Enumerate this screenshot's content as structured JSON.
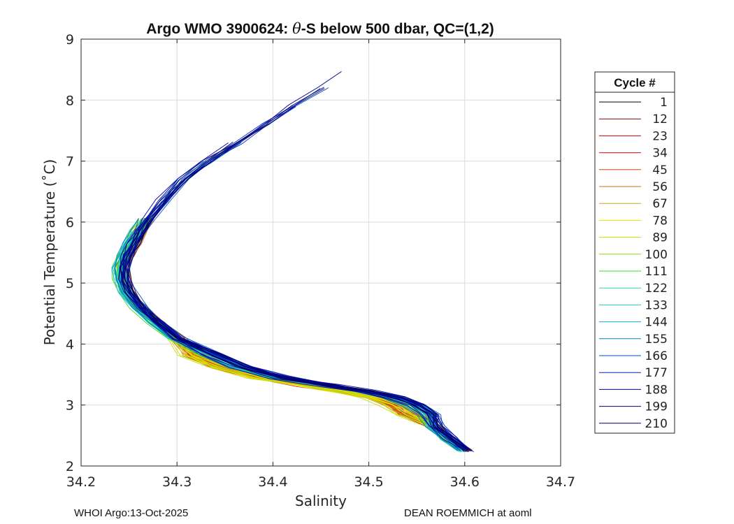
{
  "chart_data": {
    "type": "line",
    "title_prefix": "Argo WMO 3900624: ",
    "title_theta": "θ",
    "title_suffix": "-S below 500 dbar,  QC=(1,2)",
    "xlabel": "Salinity",
    "ylabel": "Potential Temperature (˚C)",
    "xlim": [
      34.2,
      34.7
    ],
    "ylim": [
      2,
      9
    ],
    "xticks": [
      "34.2",
      "34.3",
      "34.4",
      "34.5",
      "34.6",
      "34.7"
    ],
    "yticks": [
      "2",
      "3",
      "4",
      "5",
      "6",
      "7",
      "8",
      "9"
    ],
    "grid": true,
    "legend_title": "Cycle #",
    "legend": [
      {
        "label": "1",
        "color": "#000000"
      },
      {
        "label": "12",
        "color": "#8b0000"
      },
      {
        "label": "23",
        "color": "#c00000"
      },
      {
        "label": "34",
        "color": "#d01010"
      },
      {
        "label": "45",
        "color": "#d84010"
      },
      {
        "label": "56",
        "color": "#c87010"
      },
      {
        "label": "67",
        "color": "#d0a020"
      },
      {
        "label": "78",
        "color": "#e8e000"
      },
      {
        "label": "89",
        "color": "#c0e000"
      },
      {
        "label": "100",
        "color": "#80e000"
      },
      {
        "label": "111",
        "color": "#30e030"
      },
      {
        "label": "122",
        "color": "#20e090"
      },
      {
        "label": "133",
        "color": "#20d0c0"
      },
      {
        "label": "144",
        "color": "#10b0d0"
      },
      {
        "label": "155",
        "color": "#0080c0"
      },
      {
        "label": "166",
        "color": "#0050c0"
      },
      {
        "label": "177",
        "color": "#0020c0"
      },
      {
        "label": "188",
        "color": "#0000a0"
      },
      {
        "label": "199",
        "color": "#000080"
      },
      {
        "label": "210",
        "color": "#000060"
      }
    ],
    "mean_profile": {
      "s": [
        34.602,
        34.585,
        34.57,
        34.555,
        34.54,
        34.52,
        34.49,
        34.45,
        34.4,
        34.36,
        34.33,
        34.3,
        34.28,
        34.262,
        34.25,
        34.245,
        34.244,
        34.248,
        34.255,
        34.262,
        34.27,
        34.285,
        34.305,
        34.33,
        34.36,
        34.39,
        34.42,
        34.45,
        34.475
      ],
      "t": [
        2.25,
        2.45,
        2.65,
        2.85,
        3.0,
        3.12,
        3.22,
        3.32,
        3.45,
        3.62,
        3.82,
        4.1,
        4.35,
        4.6,
        4.85,
        5.05,
        5.25,
        5.45,
        5.65,
        5.85,
        6.05,
        6.35,
        6.7,
        7.0,
        7.3,
        7.6,
        7.9,
        8.2,
        8.45
      ]
    },
    "cycle_count": 210
  },
  "footer": {
    "left": "WHOI Argo:13-Oct-2025",
    "right": "DEAN ROEMMICH at aoml"
  }
}
